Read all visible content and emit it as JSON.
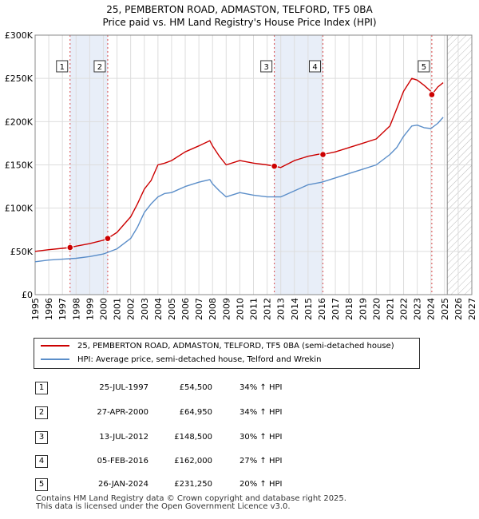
{
  "title_line1": "25, PEMBERTON ROAD, ADMASTON, TELFORD, TF5 0BA",
  "title_line2": "Price paid vs. HM Land Registry's House Price Index (HPI)",
  "legend": {
    "property_label": "25, PEMBERTON ROAD, ADMASTON, TELFORD, TF5 0BA (semi-detached house)",
    "hpi_label": "HPI: Average price, semi-detached house, Telford and Wrekin"
  },
  "colors": {
    "property": "#cc0000",
    "hpi": "#5b8ec9",
    "shade": "#e8eef8",
    "grid": "#dddddd"
  },
  "sales": [
    {
      "num": "1",
      "date": "25-JUL-1997",
      "price": "£54,500",
      "hpi": "34% ↑ HPI"
    },
    {
      "num": "2",
      "date": "27-APR-2000",
      "price": "£64,950",
      "hpi": "34% ↑ HPI"
    },
    {
      "num": "3",
      "date": "13-JUL-2012",
      "price": "£148,500",
      "hpi": "30% ↑ HPI"
    },
    {
      "num": "4",
      "date": "05-FEB-2016",
      "price": "£162,000",
      "hpi": "27% ↑ HPI"
    },
    {
      "num": "5",
      "date": "26-JAN-2024",
      "price": "£231,250",
      "hpi": "20% ↑ HPI"
    }
  ],
  "footer_line1": "Contains HM Land Registry data © Crown copyright and database right 2025.",
  "footer_line2": "This data is licensed under the Open Government Licence v3.0.",
  "chart_data": {
    "type": "line",
    "xlim": [
      1995,
      2027
    ],
    "ylim": [
      0,
      300000
    ],
    "ytick_values": [
      0,
      50000,
      100000,
      150000,
      200000,
      250000,
      300000
    ],
    "ytick_labels": [
      "£0",
      "£50K",
      "£100K",
      "£150K",
      "£200K",
      "£250K",
      "£300K"
    ],
    "xtick_labels": [
      "1995",
      "1996",
      "1997",
      "1998",
      "1999",
      "2000",
      "2001",
      "2002",
      "2003",
      "2004",
      "2005",
      "2006",
      "2007",
      "2008",
      "2009",
      "2010",
      "2011",
      "2012",
      "2013",
      "2014",
      "2015",
      "2016",
      "2017",
      "2018",
      "2019",
      "2020",
      "2021",
      "2022",
      "2023",
      "2024",
      "2025",
      "2026",
      "2027"
    ],
    "shaded_periods": [
      [
        1997.56,
        2000.32
      ],
      [
        2012.53,
        2016.09
      ]
    ],
    "future_from": 2025.2,
    "sale_markers": [
      {
        "label": "1",
        "x": 1997.56,
        "y": 54500
      },
      {
        "label": "2",
        "x": 2000.32,
        "y": 64950
      },
      {
        "label": "3",
        "x": 2012.53,
        "y": 148500
      },
      {
        "label": "4",
        "x": 2016.09,
        "y": 162000
      },
      {
        "label": "5",
        "x": 2024.07,
        "y": 231250
      }
    ],
    "series": [
      {
        "name": "25, PEMBERTON ROAD, ADMASTON, TELFORD, TF5 0BA (semi-detached house)",
        "x": [
          1995,
          1996,
          1997,
          1997.56,
          1998,
          1999,
          2000,
          2000.32,
          2001,
          2002,
          2002.5,
          2003,
          2003.5,
          2004,
          2004.5,
          2005,
          2006,
          2007,
          2007.8,
          2008,
          2008.5,
          2009,
          2010,
          2011,
          2012,
          2012.53,
          2013,
          2014,
          2015,
          2016,
          2016.09,
          2017,
          2018,
          2019,
          2020,
          2021,
          2021.5,
          2022,
          2022.6,
          2023,
          2023.5,
          2024,
          2024.07,
          2024.5,
          2024.9
        ],
        "values": [
          50000,
          52000,
          53500,
          54500,
          56000,
          59000,
          63000,
          64950,
          72000,
          90000,
          105000,
          122000,
          132000,
          150000,
          152000,
          155000,
          165000,
          172000,
          178000,
          172000,
          160000,
          150000,
          155000,
          152000,
          150000,
          148500,
          147000,
          155000,
          160000,
          163000,
          162000,
          165000,
          170000,
          175000,
          180000,
          195000,
          215000,
          235000,
          250000,
          248000,
          242000,
          235000,
          231250,
          240000,
          245000
        ]
      },
      {
        "name": "HPI: Average price, semi-detached house, Telford and Wrekin",
        "x": [
          1995,
          1996,
          1997,
          1998,
          1999,
          2000,
          2001,
          2002,
          2002.5,
          2003,
          2003.5,
          2004,
          2004.5,
          2005,
          2006,
          2007,
          2007.8,
          2008,
          2008.5,
          2009,
          2010,
          2011,
          2012,
          2013,
          2014,
          2015,
          2016,
          2017,
          2018,
          2019,
          2020,
          2021,
          2021.5,
          2022,
          2022.6,
          2023,
          2023.5,
          2024,
          2024.5,
          2024.9
        ],
        "values": [
          38000,
          40000,
          41000,
          42000,
          44000,
          47000,
          53000,
          65000,
          78000,
          95000,
          105000,
          113000,
          117000,
          118000,
          125000,
          130000,
          133000,
          128000,
          120000,
          113000,
          118000,
          115000,
          113000,
          113000,
          120000,
          127000,
          130000,
          135000,
          140000,
          145000,
          150000,
          162000,
          170000,
          183000,
          195000,
          196000,
          193000,
          192000,
          198000,
          205000
        ]
      }
    ]
  }
}
